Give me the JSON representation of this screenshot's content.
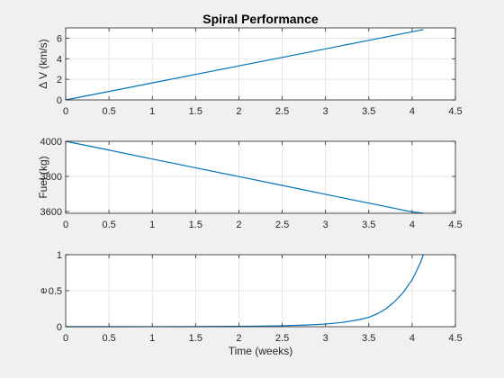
{
  "figure": {
    "title": "Spiral Performance",
    "background": "#f0f0f0",
    "axes_background": "#ffffff",
    "line_color": "#0072bd",
    "grid_color": "#dfdfdf"
  },
  "chart_data": [
    {
      "type": "line",
      "title": "Spiral Performance",
      "xlabel": "",
      "ylabel": "Δ V (km/s)",
      "xlim": [
        0,
        4.5
      ],
      "ylim": [
        0,
        7
      ],
      "xticks": [
        0,
        0.5,
        1,
        1.5,
        2,
        2.5,
        3,
        3.5,
        4,
        4.5
      ],
      "xtick_labels": [
        "0",
        "0.5",
        "1",
        "1.5",
        "2",
        "2.5",
        "3",
        "3.5",
        "4",
        "4.5"
      ],
      "yticks": [
        0,
        2,
        4,
        6
      ],
      "ytick_labels": [
        "0",
        "2",
        "4",
        "6"
      ],
      "grid": true,
      "series": [
        {
          "x": [
            0,
            0.5,
            1,
            1.5,
            2,
            2.5,
            3,
            3.5,
            4,
            4.13
          ],
          "y": [
            0,
            0.82,
            1.65,
            2.48,
            3.31,
            4.13,
            4.96,
            5.79,
            6.62,
            6.84
          ]
        }
      ]
    },
    {
      "type": "line",
      "title": "",
      "xlabel": "",
      "ylabel": "Fuel (kg)",
      "xlim": [
        0,
        4.5
      ],
      "ylim": [
        3590,
        4000
      ],
      "xticks": [
        0,
        0.5,
        1,
        1.5,
        2,
        2.5,
        3,
        3.5,
        4,
        4.5
      ],
      "xtick_labels": [
        "0",
        "0.5",
        "1",
        "1.5",
        "2",
        "2.5",
        "3",
        "3.5",
        "4",
        "4.5"
      ],
      "yticks": [
        3600,
        3800,
        4000
      ],
      "ytick_labels": [
        "3600",
        "3800",
        "4000"
      ],
      "grid": true,
      "series": [
        {
          "x": [
            0,
            0.5,
            1,
            1.5,
            2,
            2.5,
            3,
            3.5,
            4,
            4.13
          ],
          "y": [
            4000,
            3950,
            3899,
            3849,
            3799,
            3749,
            3698,
            3648,
            3598,
            3590
          ]
        }
      ]
    },
    {
      "type": "line",
      "title": "",
      "xlabel": "Time (weeks)",
      "ylabel": "e",
      "xlim": [
        0,
        4.5
      ],
      "ylim": [
        0,
        1
      ],
      "xticks": [
        0,
        0.5,
        1,
        1.5,
        2,
        2.5,
        3,
        3.5,
        4,
        4.5
      ],
      "xtick_labels": [
        "0",
        "0.5",
        "1",
        "1.5",
        "2",
        "2.5",
        "3",
        "3.5",
        "4",
        "4.5"
      ],
      "yticks": [
        0,
        0.5,
        1
      ],
      "ytick_labels": [
        "0",
        "0.5",
        "1"
      ],
      "grid": true,
      "series": [
        {
          "x": [
            0,
            0.5,
            1,
            1.5,
            2,
            2.25,
            2.5,
            2.75,
            3,
            3.2,
            3.4,
            3.5,
            3.6,
            3.7,
            3.8,
            3.9,
            4.0,
            4.05,
            4.1,
            4.13
          ],
          "y": [
            0,
            0,
            0.001,
            0.002,
            0.005,
            0.008,
            0.013,
            0.022,
            0.037,
            0.06,
            0.1,
            0.13,
            0.18,
            0.25,
            0.35,
            0.48,
            0.65,
            0.77,
            0.9,
            1.0
          ]
        }
      ]
    }
  ]
}
